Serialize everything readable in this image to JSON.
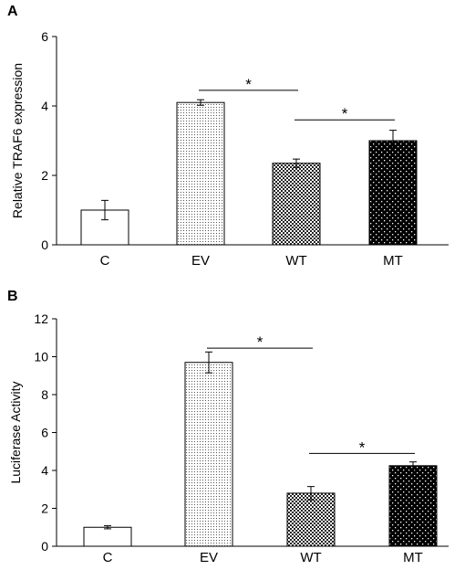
{
  "chart_data": [
    {
      "panel": "A",
      "type": "bar",
      "categories": [
        "C",
        "EV",
        "WT",
        "MT"
      ],
      "values": [
        1.0,
        4.1,
        2.35,
        3.0
      ],
      "errors": [
        0.28,
        0.08,
        0.12,
        0.3
      ],
      "patterns": [
        "white",
        "fine-dots",
        "checker",
        "black-dots"
      ],
      "ylabel": "Relative TRAF6 expression",
      "ylim": [
        0,
        6
      ],
      "yticks": [
        0,
        2,
        4,
        6
      ],
      "significance": [
        {
          "from": "EV",
          "to": "WT",
          "label": "*",
          "y": 4.45
        },
        {
          "from": "WT",
          "to": "MT",
          "label": "*",
          "y": 3.6
        }
      ]
    },
    {
      "panel": "B",
      "type": "bar",
      "categories": [
        "C",
        "EV",
        "WT",
        "MT"
      ],
      "values": [
        1.0,
        9.7,
        2.8,
        4.25
      ],
      "errors": [
        0.08,
        0.55,
        0.35,
        0.2
      ],
      "patterns": [
        "white",
        "fine-dots",
        "checker",
        "black-dots"
      ],
      "ylabel": "Luciferase Activity",
      "ylim": [
        0,
        12
      ],
      "yticks": [
        0,
        2,
        4,
        6,
        8,
        10,
        12
      ],
      "significance": [
        {
          "from": "EV",
          "to": "WT",
          "label": "*",
          "y": 10.45
        },
        {
          "from": "WT",
          "to": "MT",
          "label": "*",
          "y": 4.9
        }
      ]
    }
  ]
}
